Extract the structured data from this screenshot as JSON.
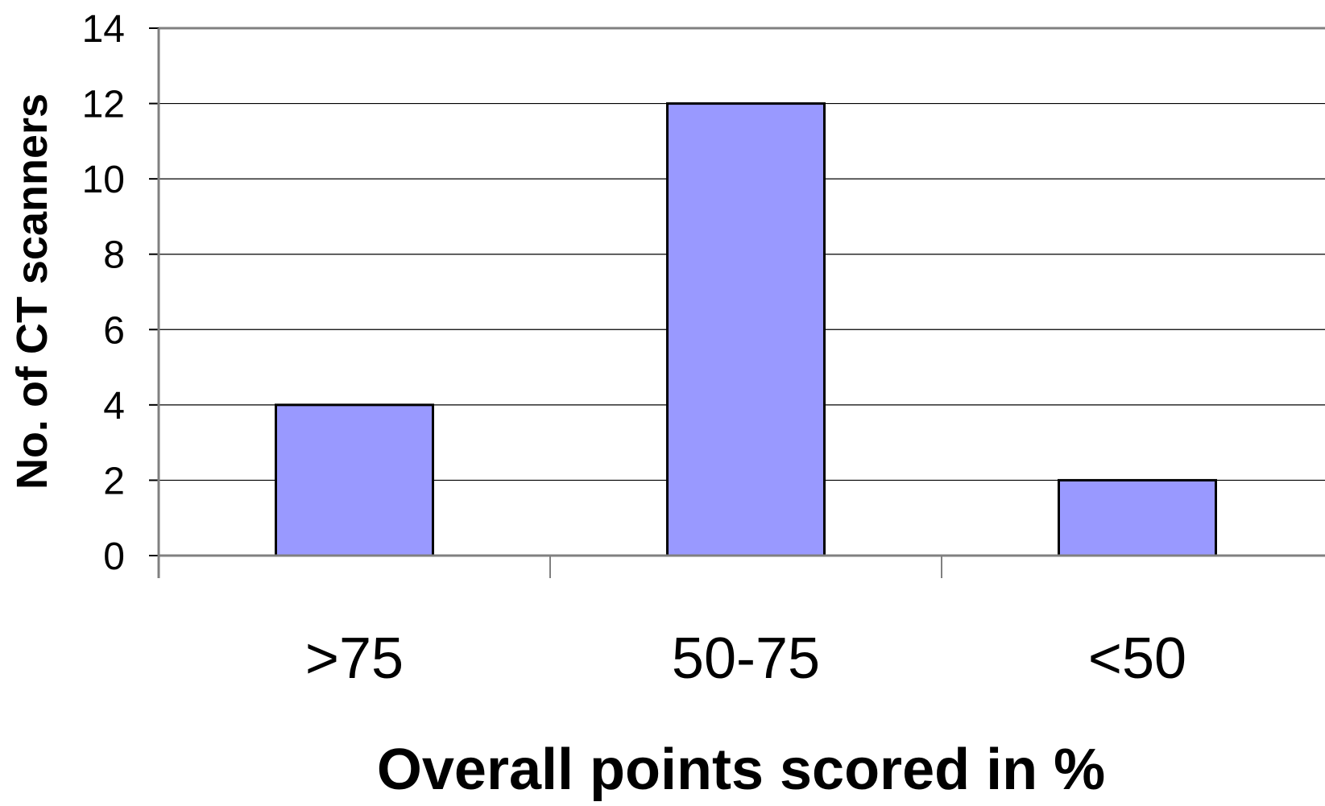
{
  "chart_data": {
    "type": "bar",
    "title": "",
    "xlabel": "Overall points scored in %",
    "ylabel": "No. of CT scanners",
    "categories": [
      ">75",
      "50-75",
      "<50"
    ],
    "values": [
      4,
      12,
      2
    ],
    "ylim": [
      0,
      14
    ],
    "yticks": [
      0,
      2,
      4,
      6,
      8,
      10,
      12,
      14
    ],
    "grid": true,
    "legend": "none",
    "bar_color": "#9999ff",
    "bar_edge_color": "#000000"
  }
}
